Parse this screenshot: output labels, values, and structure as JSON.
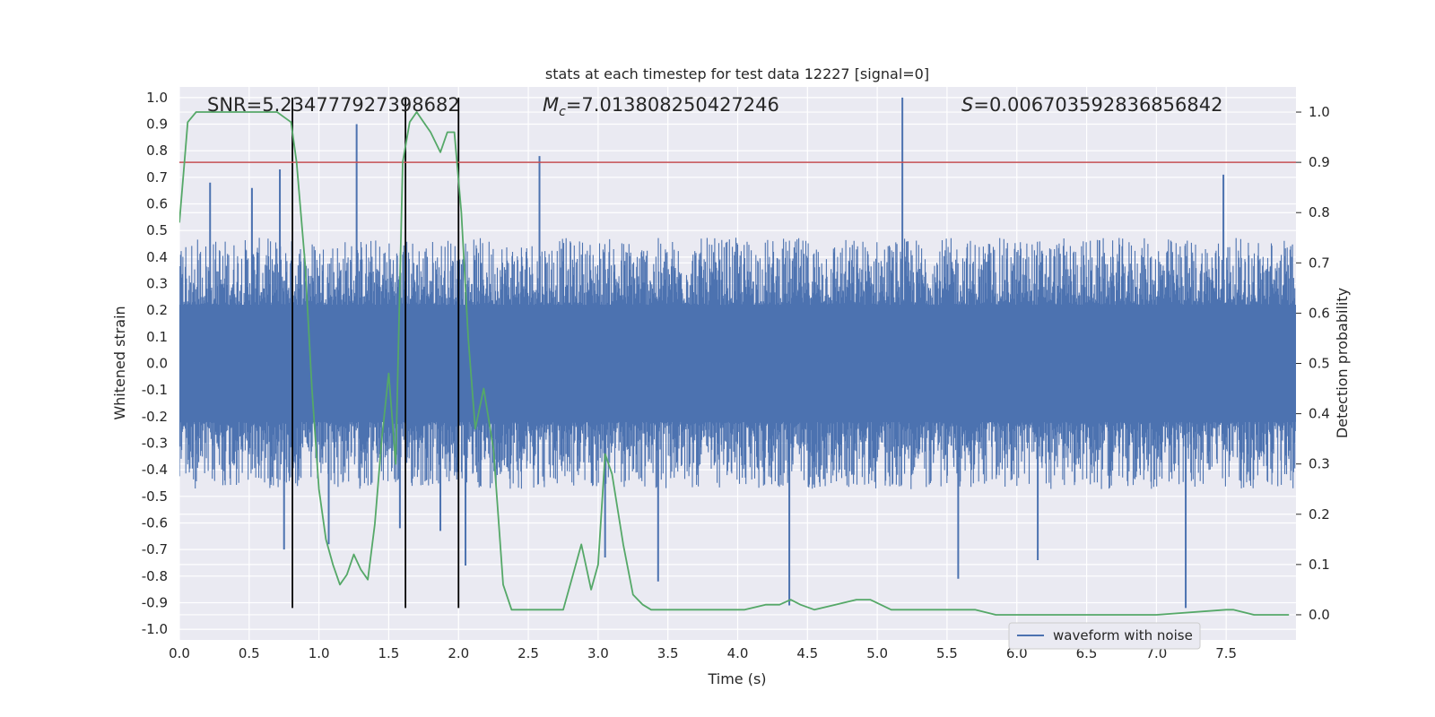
{
  "chart_data": {
    "type": "line",
    "title": "stats at each timestep for test data 12227 [signal=0]",
    "xlabel": "Time (s)",
    "ylabel": "Whitened strain",
    "y2label": "Detection probability",
    "xlim": [
      0.0,
      8.0
    ],
    "ylim": [
      -1.04,
      1.04
    ],
    "y2lim": [
      -0.05,
      1.05
    ],
    "xticks": [
      "0.0",
      "0.5",
      "1.0",
      "1.5",
      "2.0",
      "2.5",
      "3.0",
      "3.5",
      "4.0",
      "4.5",
      "5.0",
      "5.5",
      "6.0",
      "6.5",
      "7.0",
      "7.5"
    ],
    "yticks": [
      "1.0",
      "0.9",
      "0.8",
      "0.7",
      "0.6",
      "0.5",
      "0.4",
      "0.3",
      "0.2",
      "0.1",
      "0.0",
      "-0.1",
      "-0.2",
      "-0.3",
      "-0.4",
      "-0.5",
      "-0.6",
      "-0.7",
      "-0.8",
      "-0.9",
      "-1.0"
    ],
    "y2ticks": [
      "1.0",
      "0.9",
      "0.8",
      "0.7",
      "0.6",
      "0.5",
      "0.4",
      "0.3",
      "0.2",
      "0.1",
      "0.0"
    ],
    "annotations": {
      "snr": "SNR=5.234777927398682",
      "mc_symbol": "M",
      "mc_sub": "c",
      "mc_value": "=7.013808250427246",
      "s_symbol": "S",
      "s_value": "=0.006703592836856842"
    },
    "threshold": 0.9,
    "vlines": [
      0.81,
      1.62,
      2.0
    ],
    "vline_range": [
      -0.92,
      1.0
    ],
    "waveform_spikes": [
      {
        "x": 0.22,
        "y": 0.68
      },
      {
        "x": 0.52,
        "y": 0.66
      },
      {
        "x": 0.72,
        "y": 0.73
      },
      {
        "x": 0.75,
        "y": -0.7
      },
      {
        "x": 1.07,
        "y": -0.68
      },
      {
        "x": 1.27,
        "y": 0.9
      },
      {
        "x": 1.58,
        "y": -0.62
      },
      {
        "x": 1.87,
        "y": -0.63
      },
      {
        "x": 2.05,
        "y": -0.76
      },
      {
        "x": 2.58,
        "y": 0.78
      },
      {
        "x": 3.05,
        "y": -0.73
      },
      {
        "x": 3.43,
        "y": -0.82
      },
      {
        "x": 4.37,
        "y": -0.91
      },
      {
        "x": 5.18,
        "y": 1.0
      },
      {
        "x": 5.58,
        "y": -0.81
      },
      {
        "x": 6.15,
        "y": -0.74
      },
      {
        "x": 7.21,
        "y": -0.92
      },
      {
        "x": 7.48,
        "y": 0.71
      }
    ],
    "series": [
      {
        "name": "waveform with noise",
        "color": "#4c72b0",
        "band": {
          "upper": 0.22,
          "lower": -0.22,
          "envelope": 0.45
        }
      },
      {
        "name": "detection probability",
        "color": "#55a868",
        "x": [
          0.0,
          0.03,
          0.06,
          0.12,
          0.2,
          0.4,
          0.6,
          0.7,
          0.75,
          0.8,
          0.84,
          0.9,
          0.95,
          1.0,
          1.05,
          1.1,
          1.15,
          1.2,
          1.25,
          1.3,
          1.35,
          1.4,
          1.45,
          1.5,
          1.55,
          1.6,
          1.65,
          1.7,
          1.75,
          1.8,
          1.87,
          1.92,
          1.97,
          2.02,
          2.07,
          2.12,
          2.18,
          2.25,
          2.32,
          2.38,
          2.45,
          2.55,
          2.65,
          2.75,
          2.82,
          2.88,
          2.95,
          3.0,
          3.05,
          3.1,
          3.18,
          3.25,
          3.32,
          3.38,
          3.5,
          3.6,
          3.7,
          3.8,
          3.92,
          4.05,
          4.2,
          4.3,
          4.38,
          4.45,
          4.55,
          4.7,
          4.85,
          4.95,
          5.1,
          5.3,
          5.5,
          5.7,
          5.85,
          6.1,
          6.5,
          7.0,
          7.5,
          7.55,
          7.7,
          7.95
        ],
        "values": [
          0.78,
          0.88,
          0.98,
          1.0,
          1.0,
          1.0,
          1.0,
          1.0,
          0.99,
          0.98,
          0.9,
          0.7,
          0.45,
          0.25,
          0.15,
          0.1,
          0.06,
          0.08,
          0.12,
          0.09,
          0.07,
          0.18,
          0.35,
          0.48,
          0.3,
          0.9,
          0.98,
          1.0,
          0.98,
          0.96,
          0.92,
          0.96,
          0.96,
          0.8,
          0.55,
          0.37,
          0.45,
          0.33,
          0.06,
          0.01,
          0.01,
          0.01,
          0.01,
          0.01,
          0.08,
          0.14,
          0.05,
          0.1,
          0.32,
          0.28,
          0.14,
          0.04,
          0.02,
          0.01,
          0.01,
          0.01,
          0.01,
          0.01,
          0.01,
          0.01,
          0.02,
          0.02,
          0.03,
          0.02,
          0.01,
          0.02,
          0.03,
          0.03,
          0.01,
          0.01,
          0.01,
          0.01,
          0.0,
          0.0,
          0.0,
          0.0,
          0.01,
          0.01,
          0.0,
          0.0
        ]
      }
    ],
    "legend": {
      "label": "waveform with noise",
      "position": "lower-right"
    },
    "grid": true
  }
}
